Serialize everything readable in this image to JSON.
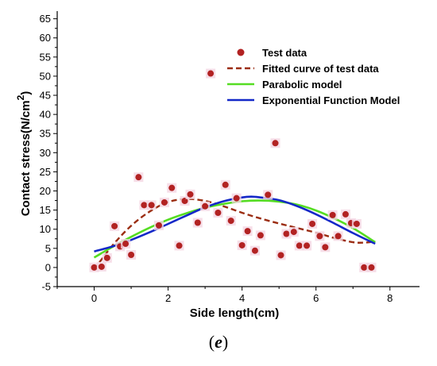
{
  "chart_data": {
    "type": "scatter",
    "xlabel": "Side length(cm)",
    "ylabel_main": "Contact stress(N/cm",
    "ylabel_sup": "2",
    "ylabel_close": ")",
    "xlim": [
      -1.0,
      8.8
    ],
    "ylim": [
      -5,
      67
    ],
    "x_ticks": [
      0,
      2,
      4,
      6,
      8
    ],
    "y_ticks": [
      -5,
      0,
      5,
      10,
      15,
      20,
      25,
      30,
      35,
      40,
      45,
      50,
      55,
      60,
      65
    ],
    "legend_position": "top-right",
    "grid": false,
    "series": [
      {
        "name": "Test data",
        "kind": "scatter",
        "color": "#b22222",
        "points": [
          [
            0.0,
            0.0
          ],
          [
            0.2,
            0.2
          ],
          [
            0.35,
            2.5
          ],
          [
            0.55,
            10.8
          ],
          [
            0.7,
            5.5
          ],
          [
            0.85,
            6.2
          ],
          [
            1.0,
            3.3
          ],
          [
            1.2,
            23.6
          ],
          [
            1.35,
            16.3
          ],
          [
            1.55,
            16.3
          ],
          [
            1.75,
            11.0
          ],
          [
            1.9,
            17.0
          ],
          [
            2.1,
            20.8
          ],
          [
            2.3,
            5.7
          ],
          [
            2.45,
            17.4
          ],
          [
            2.6,
            19.1
          ],
          [
            2.8,
            11.7
          ],
          [
            3.0,
            16.0
          ],
          [
            3.15,
            50.7
          ],
          [
            3.35,
            14.3
          ],
          [
            3.55,
            21.6
          ],
          [
            3.7,
            12.2
          ],
          [
            3.85,
            18.1
          ],
          [
            4.0,
            5.8
          ],
          [
            4.15,
            9.5
          ],
          [
            4.35,
            4.4
          ],
          [
            4.5,
            8.4
          ],
          [
            4.7,
            19.0
          ],
          [
            4.9,
            32.5
          ],
          [
            5.05,
            3.2
          ],
          [
            5.2,
            8.8
          ],
          [
            5.4,
            9.3
          ],
          [
            5.55,
            5.7
          ],
          [
            5.75,
            5.7
          ],
          [
            5.9,
            11.4
          ],
          [
            6.1,
            8.2
          ],
          [
            6.25,
            5.3
          ],
          [
            6.45,
            13.7
          ],
          [
            6.6,
            8.2
          ],
          [
            6.8,
            13.9
          ],
          [
            6.95,
            11.6
          ],
          [
            7.1,
            11.4
          ],
          [
            7.3,
            0.0
          ],
          [
            7.5,
            0.0
          ]
        ]
      },
      {
        "name": "Fitted curve of test data",
        "kind": "line",
        "style": "dashed",
        "color": "#9b2d12",
        "x": [
          0,
          0.5,
          1,
          1.5,
          2,
          2.5,
          3,
          3.5,
          4,
          4.5,
          5,
          5.5,
          6,
          6.5,
          7,
          7.3,
          7.6
        ],
        "y": [
          -0.5,
          5.8,
          10.9,
          14.6,
          17.1,
          17.9,
          17.4,
          16.0,
          14.3,
          12.8,
          11.5,
          10.3,
          9.1,
          7.7,
          6.6,
          6.5,
          6.8
        ]
      },
      {
        "name": "Parabolic model",
        "kind": "line",
        "style": "solid",
        "color": "#55dd22",
        "x": [
          0,
          0.5,
          1,
          1.5,
          2,
          2.5,
          3,
          3.5,
          4,
          4.5,
          5,
          5.5,
          6,
          6.5,
          7,
          7.6
        ],
        "y": [
          2.6,
          5.4,
          8.0,
          10.4,
          12.5,
          14.2,
          15.6,
          16.6,
          17.3,
          17.5,
          17.2,
          16.4,
          14.9,
          12.8,
          10.3,
          6.6
        ]
      },
      {
        "name": "Exponential Function Model",
        "kind": "line",
        "style": "solid",
        "color": "#1428c8",
        "x": [
          0,
          0.5,
          1,
          1.5,
          2,
          2.5,
          3,
          3.5,
          4,
          4.25,
          4.5,
          5,
          5.5,
          6,
          6.5,
          7,
          7.6
        ],
        "y": [
          4.2,
          5.5,
          7.2,
          9.2,
          11.4,
          13.6,
          15.7,
          17.3,
          18.3,
          18.5,
          18.3,
          17.6,
          16.0,
          13.9,
          11.5,
          9.0,
          6.2
        ]
      }
    ]
  },
  "caption": {
    "open": "(",
    "letter": "e",
    "close": ")"
  }
}
